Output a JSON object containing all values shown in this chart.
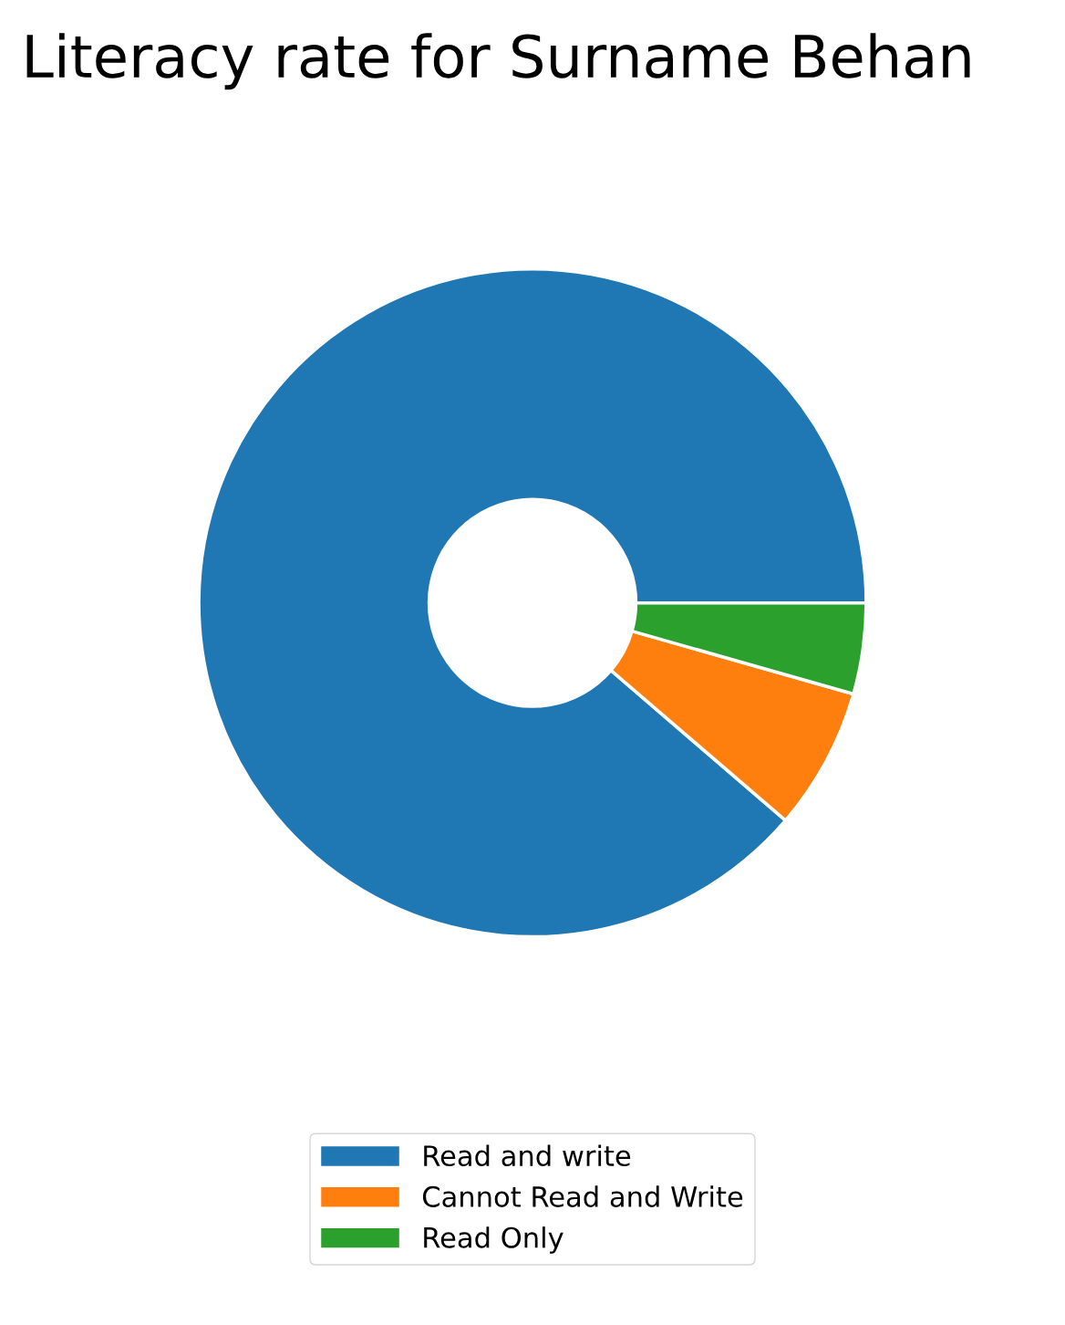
{
  "chart_data": {
    "type": "donut",
    "title": "Literacy rate for Surname Behan",
    "categories": [
      "Read and write",
      "Cannot Read and Write",
      "Read Only"
    ],
    "values": [
      88.7,
      6.9,
      4.4
    ],
    "colors": [
      "#1f77b4",
      "#ff7f0e",
      "#2ca02c"
    ],
    "legend": "bottom"
  }
}
